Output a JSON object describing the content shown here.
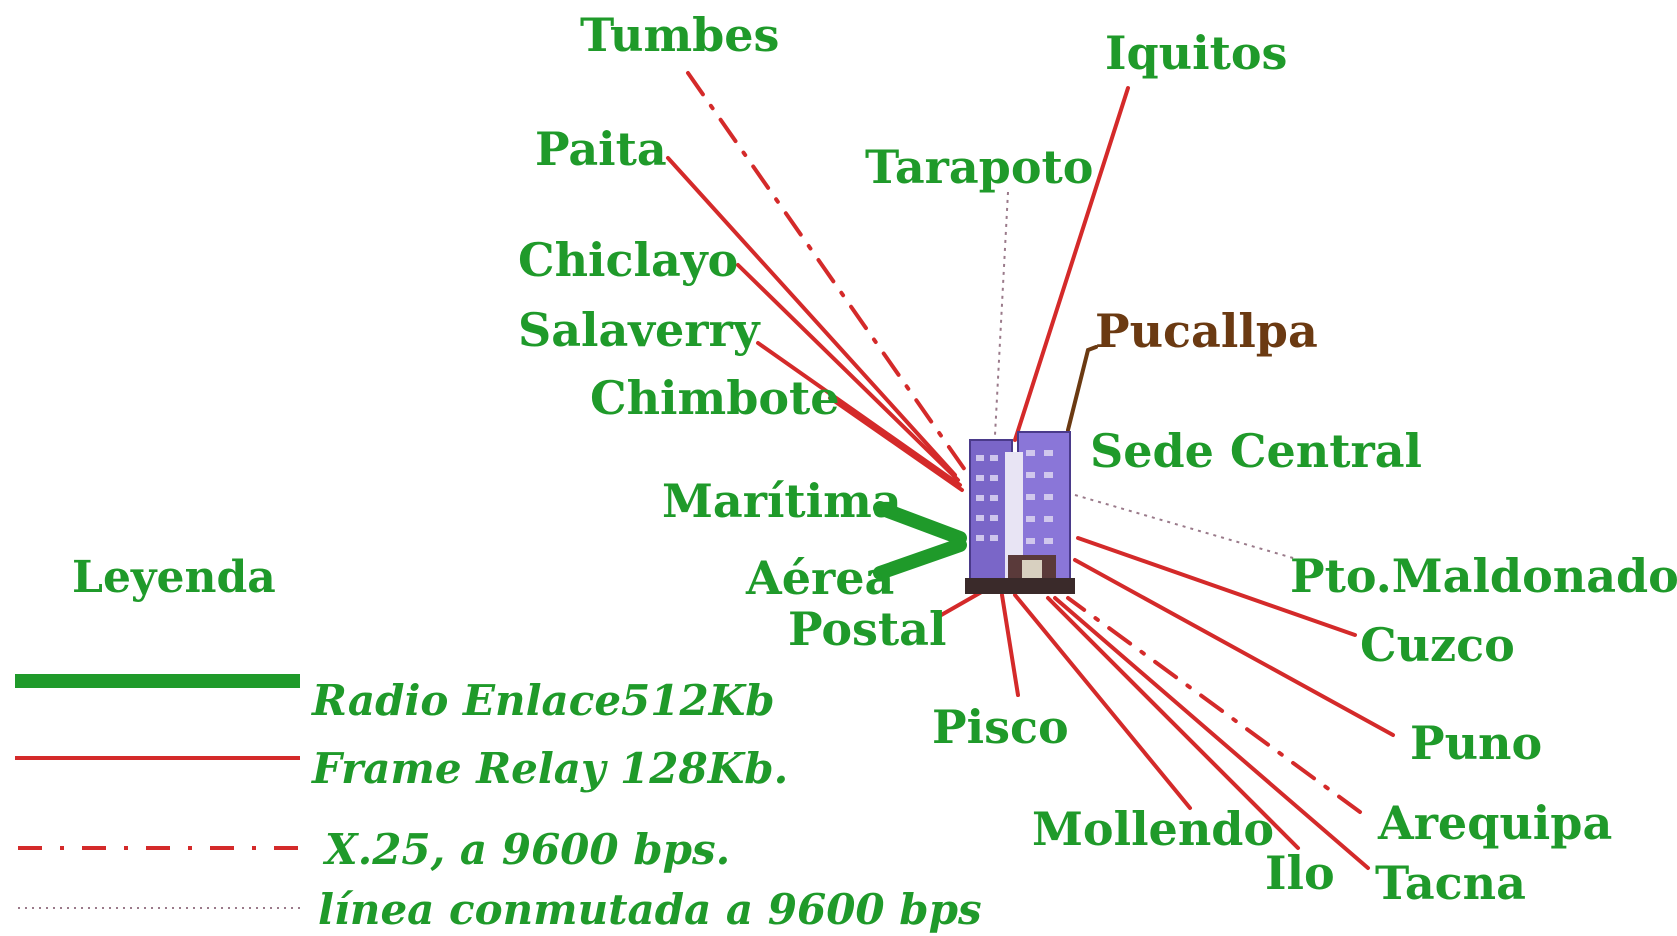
{
  "hub": {
    "label": "Sede Central"
  },
  "cities": {
    "tumbes": "Tumbes",
    "iquitos": "Iquitos",
    "paita": "Paita",
    "tarapoto": "Tarapoto",
    "chiclayo": "Chiclayo",
    "salaverry": "Salaverry",
    "pucallpa": "Pucallpa",
    "chimbote": "Chimbote",
    "maritima": "Marítima",
    "aerea": "Aérea",
    "postal": "Postal",
    "pto_maldonado": "Pto.Maldonado",
    "cuzco": "Cuzco",
    "pisco": "Pisco",
    "puno": "Puno",
    "mollendo": "Mollendo",
    "ilo": "Ilo",
    "arequipa": "Arequipa",
    "tacna": "Tacna"
  },
  "legend": {
    "title": "Leyenda",
    "items": [
      {
        "label": "Radio Enlace512Kb",
        "style": "radio",
        "color": "#1f9a2a"
      },
      {
        "label": "Frame Relay  128Kb.",
        "style": "frame-relay",
        "color": "#d42a2a"
      },
      {
        "label": "X.25, a 9600 bps.",
        "style": "x25",
        "color": "#d42a2a"
      },
      {
        "label": "línea conmutada a 9600 bps",
        "style": "dial-up",
        "color": "#9a7a8a"
      }
    ]
  },
  "colors": {
    "text": "#1f9a2a",
    "pucallpa_text": "#6b3a12",
    "frame_relay": "#d42a2a",
    "radio": "#1f9a2a",
    "dial_up": "#9a7a8a",
    "pucallpa_link": "#6b3a12",
    "building": "#7a66c8"
  }
}
